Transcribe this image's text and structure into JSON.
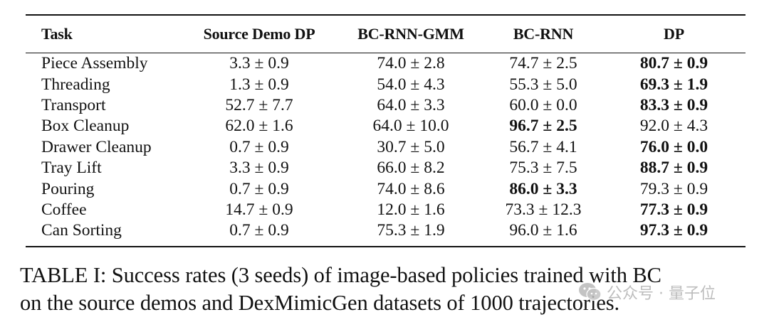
{
  "table": {
    "headers": [
      "Task",
      "Source Demo DP",
      "BC-RNN-GMM",
      "BC-RNN",
      "DP"
    ],
    "rows": [
      {
        "task": "Piece Assembly",
        "values": [
          "3.3 ± 0.9",
          "74.0 ± 2.8",
          "74.7 ± 2.5",
          "80.7 ± 0.9"
        ],
        "best": 3
      },
      {
        "task": "Threading",
        "values": [
          "1.3 ± 0.9",
          "54.0 ± 4.3",
          "55.3 ± 5.0",
          "69.3 ± 1.9"
        ],
        "best": 3
      },
      {
        "task": "Transport",
        "values": [
          "52.7 ± 7.7",
          "64.0 ± 3.3",
          "60.0 ± 0.0",
          "83.3 ± 0.9"
        ],
        "best": 3
      },
      {
        "task": "Box Cleanup",
        "values": [
          "62.0 ± 1.6",
          "64.0 ± 10.0",
          "96.7 ± 2.5",
          "92.0 ± 4.3"
        ],
        "best": 2
      },
      {
        "task": "Drawer Cleanup",
        "values": [
          "0.7 ± 0.9",
          "30.7 ± 5.0",
          "56.7 ± 4.1",
          "76.0 ± 0.0"
        ],
        "best": 3
      },
      {
        "task": "Tray Lift",
        "values": [
          "3.3 ± 0.9",
          "66.0 ± 8.2",
          "75.3 ± 7.5",
          "88.7 ± 0.9"
        ],
        "best": 3
      },
      {
        "task": "Pouring",
        "values": [
          "0.7 ± 0.9",
          "74.0 ± 8.6",
          "86.0 ± 3.3",
          "79.3 ± 0.9"
        ],
        "best": 2
      },
      {
        "task": "Coffee",
        "values": [
          "14.7 ± 0.9",
          "12.0 ± 1.6",
          "73.3 ± 12.3",
          "77.3 ± 0.9"
        ],
        "best": 3
      },
      {
        "task": "Can Sorting",
        "values": [
          "0.7 ± 0.9",
          "75.3 ± 1.9",
          "96.0 ± 1.6",
          "97.3 ± 0.9"
        ],
        "best": 3
      }
    ]
  },
  "caption": {
    "line1": "TABLE I: Success rates (3 seeds) of image-based policies trained with BC",
    "line2": "on the source demos and DexMimicGen datasets of 1000 trajectories."
  },
  "watermark": {
    "icon": "wechat-icon",
    "text": "公众号 · 量子位"
  }
}
